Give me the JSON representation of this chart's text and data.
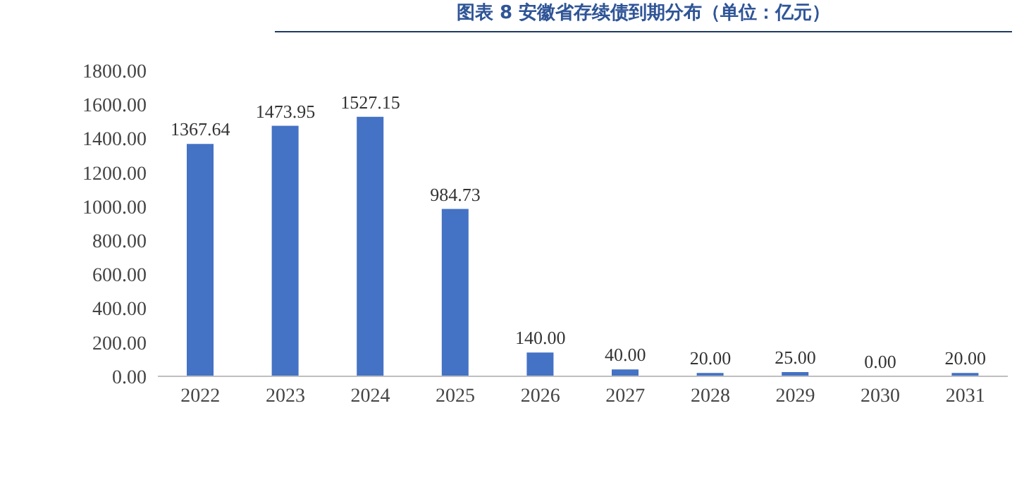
{
  "chart_data": {
    "type": "bar",
    "title": "图表 8 安徽省存续债到期分布（单位：亿元）",
    "categories": [
      "2022",
      "2023",
      "2024",
      "2025",
      "2026",
      "2027",
      "2028",
      "2029",
      "2030",
      "2031"
    ],
    "values": [
      1367.64,
      1473.95,
      1527.15,
      984.73,
      140,
      40,
      20,
      25,
      0,
      20
    ],
    "value_labels": [
      "1367.64",
      "1473.95",
      "1527.15",
      "984.73",
      "140.00",
      "40.00",
      "20.00",
      "25.00",
      "0.00",
      "20.00"
    ],
    "color": "#4472c4",
    "ylim": [
      0,
      1800
    ],
    "yticks": [
      {
        "value": 0,
        "label": "0.00"
      },
      {
        "value": 200,
        "label": "200.00"
      },
      {
        "value": 400,
        "label": "400.00"
      },
      {
        "value": 600,
        "label": "600.00"
      },
      {
        "value": 800,
        "label": "800.00"
      },
      {
        "value": 1000,
        "label": "1000.00"
      },
      {
        "value": 1200,
        "label": "1200.00"
      },
      {
        "value": 1400,
        "label": "1400.00"
      },
      {
        "value": 1600,
        "label": "1600.00"
      },
      {
        "value": 1800,
        "label": "1800.00"
      }
    ],
    "grid": false,
    "legend": false
  }
}
